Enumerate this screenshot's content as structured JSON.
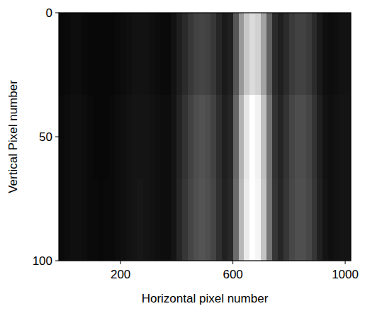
{
  "chart_data": {
    "type": "heatmap",
    "x_label": "Horizontal pixel number",
    "y_label": "Vertical Pixel number",
    "xlim": [
      -20,
      1020
    ],
    "ylim": [
      100,
      0
    ],
    "xticks": [
      200,
      600,
      1000
    ],
    "yticks": [
      0,
      50,
      100
    ],
    "color": "#ffffff",
    "cells": {
      "x_edges": [
        -20,
        0,
        20,
        40,
        60,
        80,
        100,
        120,
        140,
        160,
        180,
        200,
        220,
        240,
        260,
        280,
        300,
        320,
        340,
        360,
        380,
        400,
        420,
        440,
        460,
        480,
        500,
        520,
        540,
        560,
        580,
        600,
        620,
        640,
        660,
        680,
        700,
        720,
        740,
        760,
        780,
        800,
        820,
        840,
        860,
        880,
        900,
        920,
        940,
        960,
        980,
        1000,
        1020
      ],
      "y_edges": [
        0,
        33,
        67,
        100
      ],
      "zlim": [
        0,
        1
      ],
      "values": [
        [
          0.03,
          0.04,
          0.05,
          0.05,
          0.04,
          0.03,
          0.03,
          0.03,
          0.03,
          0.03,
          0.04,
          0.05,
          0.06,
          0.07,
          0.07,
          0.07,
          0.06,
          0.05,
          0.04,
          0.04,
          0.07,
          0.12,
          0.17,
          0.22,
          0.26,
          0.27,
          0.26,
          0.22,
          0.15,
          0.1,
          0.13,
          0.34,
          0.6,
          0.78,
          0.86,
          0.82,
          0.64,
          0.38,
          0.17,
          0.12,
          0.17,
          0.23,
          0.26,
          0.26,
          0.23,
          0.17,
          0.1,
          0.06,
          0.05,
          0.06,
          0.07,
          0.07
        ],
        [
          0.04,
          0.05,
          0.06,
          0.06,
          0.05,
          0.04,
          0.03,
          0.03,
          0.03,
          0.04,
          0.05,
          0.06,
          0.07,
          0.08,
          0.08,
          0.08,
          0.07,
          0.06,
          0.05,
          0.05,
          0.08,
          0.14,
          0.2,
          0.26,
          0.3,
          0.32,
          0.3,
          0.26,
          0.18,
          0.12,
          0.15,
          0.4,
          0.7,
          0.9,
          1.0,
          0.95,
          0.75,
          0.45,
          0.2,
          0.14,
          0.2,
          0.27,
          0.3,
          0.3,
          0.27,
          0.2,
          0.12,
          0.07,
          0.06,
          0.07,
          0.08,
          0.08
        ],
        [
          0.04,
          0.05,
          0.06,
          0.06,
          0.05,
          0.04,
          0.04,
          0.03,
          0.04,
          0.04,
          0.05,
          0.06,
          0.07,
          0.08,
          0.09,
          0.08,
          0.07,
          0.06,
          0.05,
          0.05,
          0.08,
          0.15,
          0.21,
          0.27,
          0.31,
          0.33,
          0.31,
          0.27,
          0.19,
          0.13,
          0.16,
          0.42,
          0.72,
          0.92,
          1.0,
          0.96,
          0.77,
          0.46,
          0.21,
          0.15,
          0.21,
          0.28,
          0.31,
          0.31,
          0.28,
          0.21,
          0.13,
          0.08,
          0.06,
          0.07,
          0.08,
          0.08
        ]
      ]
    }
  }
}
